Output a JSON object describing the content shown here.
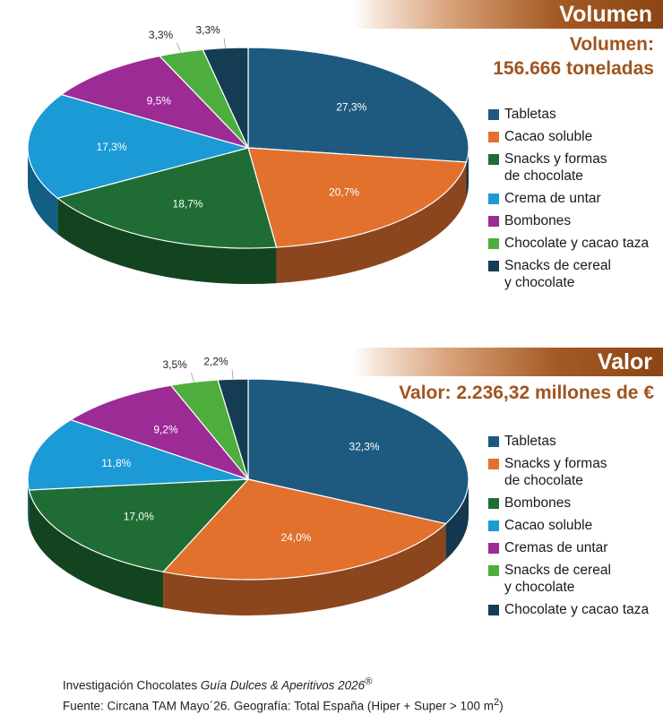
{
  "colors": {
    "tabletas": "#1e5a80",
    "orange": "#e2712e",
    "dark_green": "#1f6d34",
    "light_blue": "#1b9ad6",
    "purple": "#9c2b96",
    "light_green": "#4eae3d",
    "navy": "#143d54",
    "banner_brown": "#8b4513",
    "subtitle_brown": "#a0541e"
  },
  "chart_data": [
    {
      "type": "pie",
      "banner": "Volumen",
      "title": "Volumen:\n156.666 toneladas",
      "legend_position": "right",
      "slices": [
        {
          "label": "Tabletas",
          "value": 27.3,
          "display": "27,3%",
          "color": "#1e5a80"
        },
        {
          "label": "Cacao soluble",
          "value": 20.7,
          "display": "20,7%",
          "color": "#e2712e"
        },
        {
          "label": "Snacks y formas\nde chocolate",
          "value": 18.7,
          "display": "18,7%",
          "color": "#1f6d34"
        },
        {
          "label": "Crema de untar",
          "value": 17.3,
          "display": "17,3%",
          "color": "#1b9ad6"
        },
        {
          "label": "Bombones",
          "value": 9.5,
          "display": "9,5%",
          "color": "#9c2b96"
        },
        {
          "label": "Chocolate y cacao taza",
          "value": 3.3,
          "display": "3,3%",
          "color": "#4eae3d"
        },
        {
          "label": "Snacks de cereal\ny chocolate",
          "value": 3.3,
          "display": "3,3%",
          "color": "#143d54"
        }
      ]
    },
    {
      "type": "pie",
      "banner": "Valor",
      "title": "Valor: 2.236,32 millones de €",
      "legend_position": "right",
      "slices": [
        {
          "label": "Tabletas",
          "value": 32.3,
          "display": "32,3%",
          "color": "#1e5a80"
        },
        {
          "label": "Snacks y formas\nde chocolate",
          "value": 24.0,
          "display": "24,0%",
          "color": "#e2712e"
        },
        {
          "label": "Bombones",
          "value": 17.0,
          "display": "17,0%",
          "color": "#1f6d34"
        },
        {
          "label": "Cacao soluble",
          "value": 11.8,
          "display": "11,8%",
          "color": "#1b9ad6"
        },
        {
          "label": "Cremas de untar",
          "value": 9.2,
          "display": "9,2%",
          "color": "#9c2b96"
        },
        {
          "label": "Snacks de cereal\ny chocolate",
          "value": 3.5,
          "display": "3,5%",
          "color": "#4eae3d"
        },
        {
          "label": "Chocolate y cacao taza",
          "value": 2.2,
          "display": "2,2%",
          "color": "#143d54"
        }
      ]
    }
  ],
  "footer": {
    "line1_prefix": "Investigación Chocolates ",
    "line1_italic": "Guía Dulces & Aperitivos 2026",
    "line1_mark": "®",
    "line2_prefix": "Fuente: Circana TAM Mayo´26. Geografía: Total España (Hiper + Super > 100 m",
    "line2_sup": "2",
    "line2_suffix": ")"
  }
}
